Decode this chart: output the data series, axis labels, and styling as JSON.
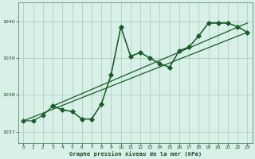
{
  "title": "Graphe pression niveau de la mer (hPa)",
  "background_color": "#d8f0e8",
  "grid_color": "#a8c8b8",
  "line_color": "#1a5c2a",
  "xlim": [
    -0.5,
    23.5
  ],
  "ylim": [
    1036.7,
    1040.5
  ],
  "yticks": [
    1037,
    1038,
    1039,
    1040
  ],
  "xticks": [
    0,
    1,
    2,
    3,
    4,
    5,
    6,
    7,
    8,
    9,
    10,
    11,
    12,
    13,
    14,
    15,
    16,
    17,
    18,
    19,
    20,
    21,
    22,
    23
  ],
  "line1_x": [
    0,
    1,
    2,
    3,
    4,
    5,
    6,
    7,
    8,
    9,
    10,
    11,
    12,
    13,
    14,
    15,
    16,
    17,
    18,
    19,
    20,
    21,
    22,
    23
  ],
  "line1_y": [
    1037.3,
    1037.3,
    1037.45,
    1037.7,
    1037.6,
    1037.55,
    1037.35,
    1037.35,
    1037.75,
    1038.55,
    1039.85,
    1039.05,
    1039.15,
    1039.0,
    1038.85,
    1038.75,
    1039.2,
    1039.3,
    1039.6,
    1039.95,
    1039.95,
    1039.95,
    1039.85,
    1039.7
  ],
  "line2_x": [
    3,
    4,
    5,
    6,
    7,
    8,
    9,
    10,
    11,
    12,
    13,
    14,
    15,
    16,
    17,
    18,
    19,
    20,
    21,
    22,
    23
  ],
  "line2_y": [
    1037.7,
    1037.6,
    1037.55,
    1037.35,
    1037.35,
    1037.75,
    1038.55,
    1039.85,
    1039.05,
    1039.15,
    1039.0,
    1038.85,
    1038.75,
    1039.2,
    1039.3,
    1039.6,
    1039.95,
    1039.95,
    1039.95,
    1039.85,
    1039.7
  ],
  "trend1_x": [
    0,
    23
  ],
  "trend1_y": [
    1037.3,
    1039.7
  ],
  "trend2_x": [
    3,
    23
  ],
  "trend2_y": [
    1037.7,
    1039.95
  ]
}
